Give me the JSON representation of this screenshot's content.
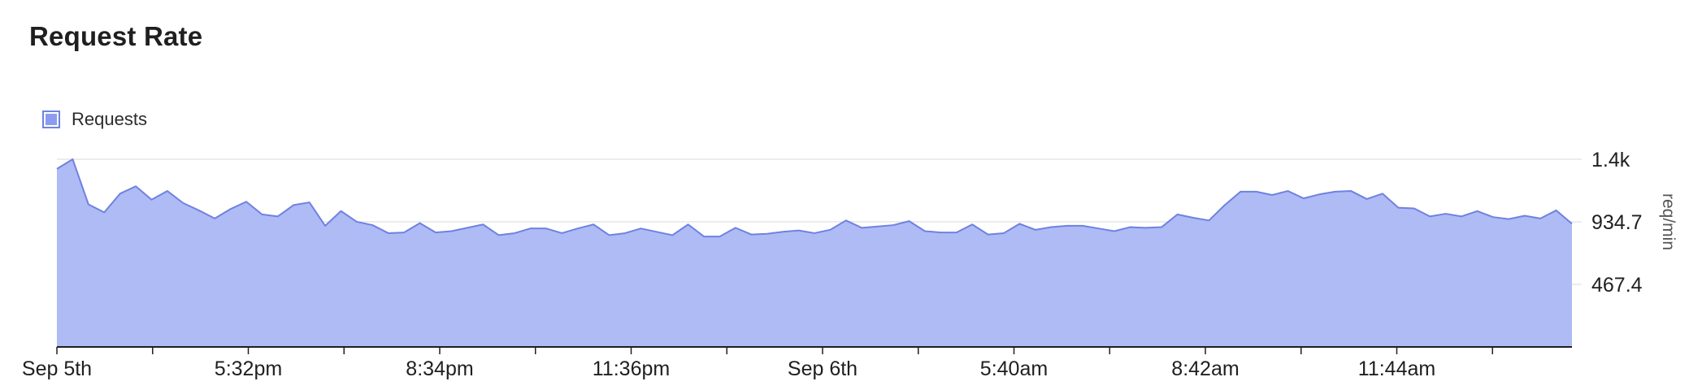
{
  "panel": {
    "title": "Request Rate"
  },
  "legend": {
    "label": "Requests",
    "swatch_color": "#8b9cf0"
  },
  "colors": {
    "area_fill": "#aebbf5",
    "line": "#6f82e0",
    "grid": "#e6e6e6",
    "axis": "#1f1f1f"
  },
  "chart_data": {
    "type": "area",
    "title": "Request Rate",
    "ylabel": "req/min",
    "ylim": [
      0,
      1402
    ],
    "y_ticks": [
      {
        "value": 467.4,
        "label": "467.4"
      },
      {
        "value": 934.7,
        "label": "934.7"
      },
      {
        "value": 1402,
        "label": "1.4k"
      }
    ],
    "x_tick_labels": [
      "Sep 5th",
      "5:32pm",
      "8:34pm",
      "11:36pm",
      "Sep 6th",
      "5:40am",
      "8:42am",
      "11:44am"
    ],
    "grid": true,
    "legend_position": "top-left",
    "series": [
      {
        "name": "Requests",
        "values": [
          1330,
          1402,
          1065,
          1005,
          1145,
          1200,
          1100,
          1165,
          1075,
          1020,
          960,
          1030,
          1085,
          990,
          975,
          1060,
          1080,
          905,
          1015,
          935,
          910,
          850,
          855,
          925,
          855,
          865,
          890,
          915,
          835,
          850,
          885,
          885,
          850,
          885,
          915,
          835,
          850,
          885,
          860,
          835,
          915,
          825,
          825,
          890,
          840,
          845,
          860,
          870,
          850,
          875,
          945,
          890,
          900,
          910,
          940,
          865,
          855,
          855,
          915,
          840,
          850,
          920,
          875,
          895,
          905,
          905,
          885,
          865,
          895,
          890,
          895,
          990,
          965,
          945,
          1060,
          1160,
          1160,
          1135,
          1165,
          1110,
          1140,
          1160,
          1165,
          1105,
          1145,
          1040,
          1035,
          975,
          995,
          975,
          1015,
          970,
          955,
          980,
          960,
          1020,
          920
        ]
      }
    ]
  }
}
